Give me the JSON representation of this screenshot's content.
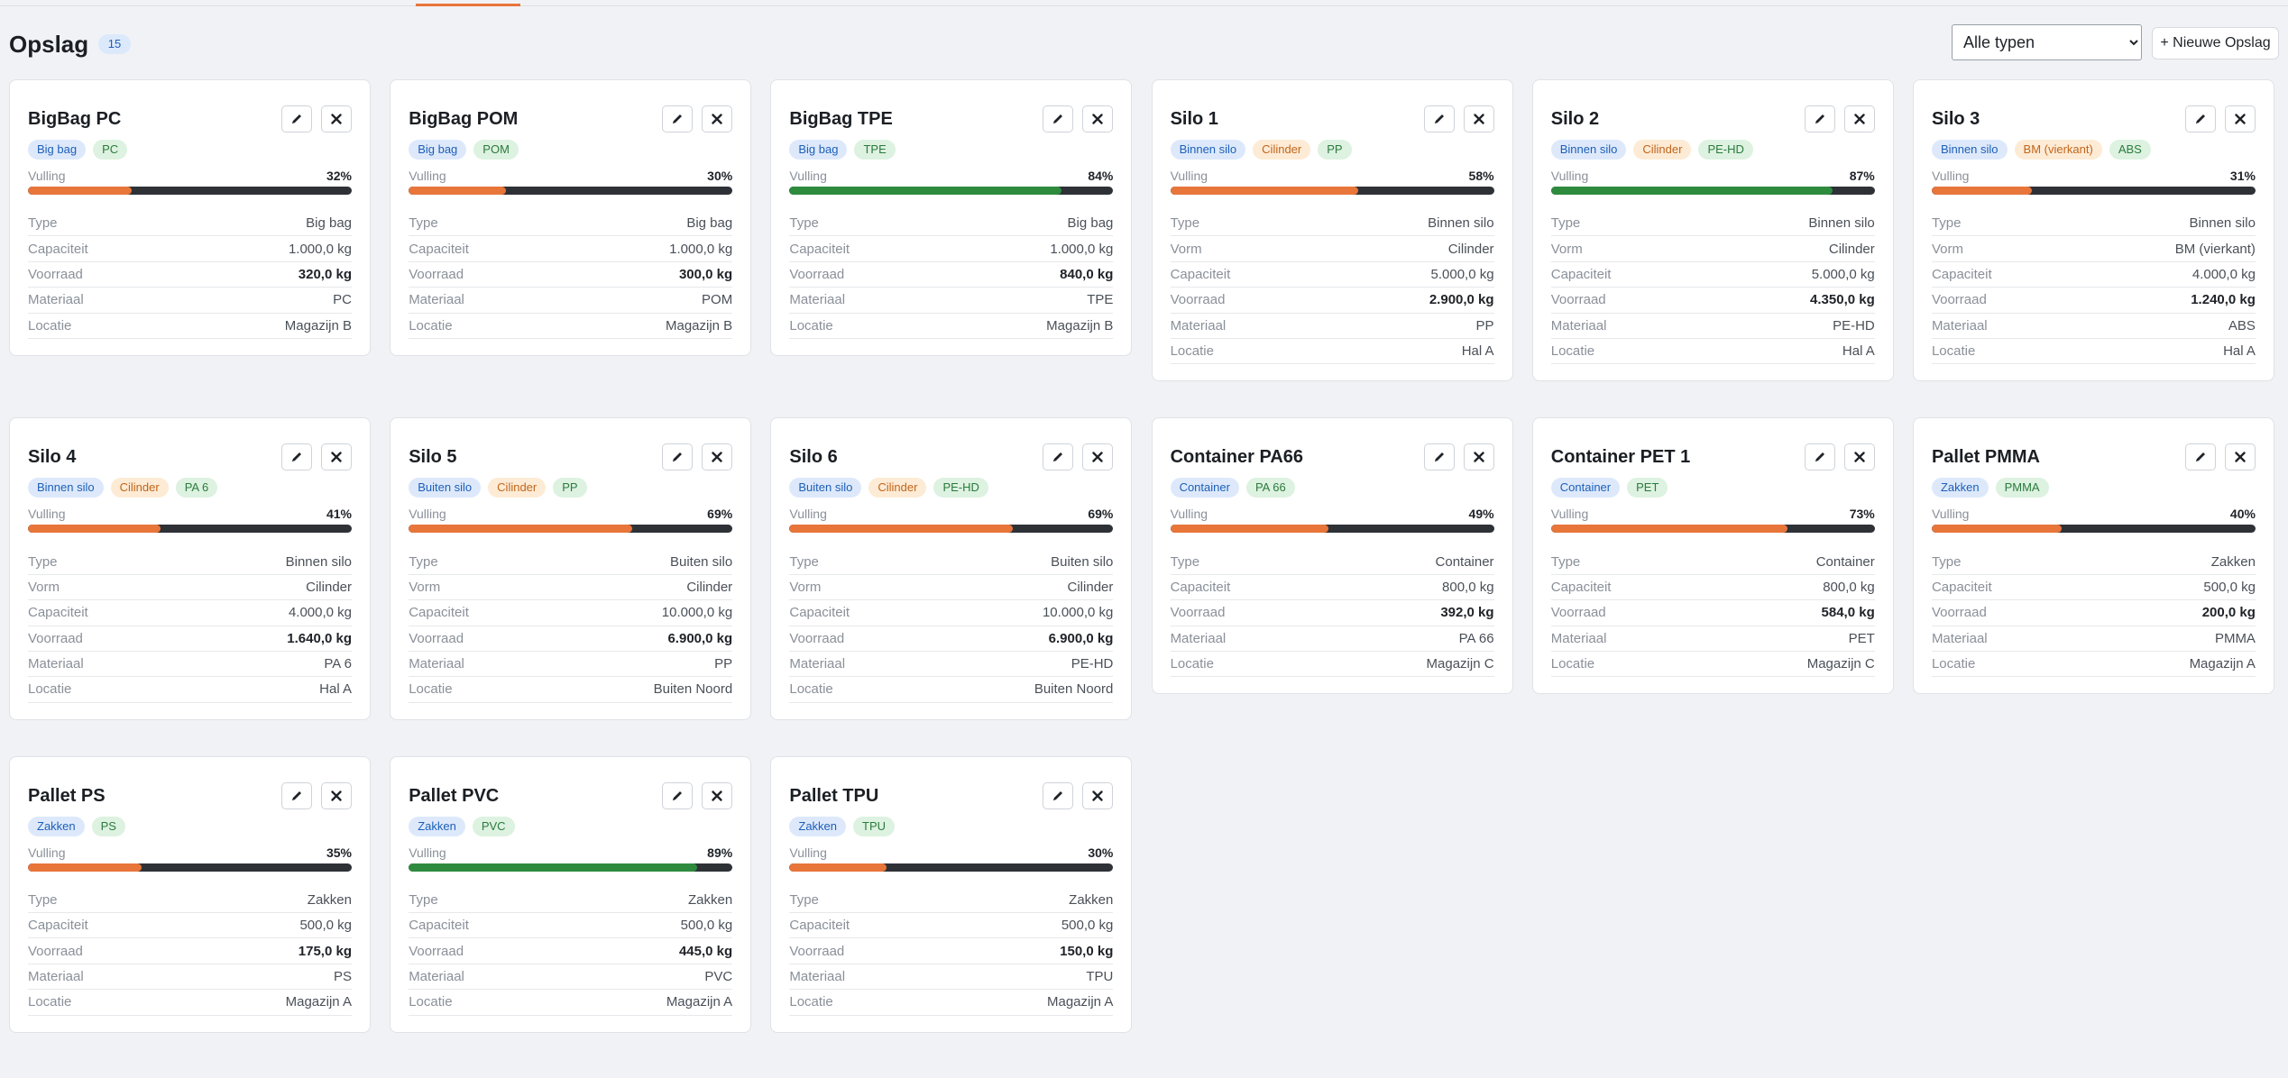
{
  "page": {
    "title": "Opslag",
    "count": "15",
    "filter": {
      "selected": "Alle typen"
    },
    "new_button_label": "+ Nieuwe Opslag",
    "fill_label": "Vulling"
  },
  "colors": {
    "accent": "#e8753a",
    "fill_high": "#2e8b3e",
    "bar_track": "#2e3237"
  },
  "cards": [
    {
      "title": "BigBag PC",
      "tags": [
        {
          "text": "Big bag",
          "kind": "type"
        },
        {
          "text": "PC",
          "kind": "material"
        }
      ],
      "fill_pct": 32,
      "fill_text": "32%",
      "rows": [
        {
          "label": "Type",
          "value": "Big bag"
        },
        {
          "label": "Capaciteit",
          "value": "1.000,0 kg"
        },
        {
          "label": "Voorraad",
          "value": "320,0 kg",
          "strong": true
        },
        {
          "label": "Materiaal",
          "value": "PC"
        },
        {
          "label": "Locatie",
          "value": "Magazijn B"
        }
      ]
    },
    {
      "title": "BigBag POM",
      "tags": [
        {
          "text": "Big bag",
          "kind": "type"
        },
        {
          "text": "POM",
          "kind": "material"
        }
      ],
      "fill_pct": 30,
      "fill_text": "30%",
      "rows": [
        {
          "label": "Type",
          "value": "Big bag"
        },
        {
          "label": "Capaciteit",
          "value": "1.000,0 kg"
        },
        {
          "label": "Voorraad",
          "value": "300,0 kg",
          "strong": true
        },
        {
          "label": "Materiaal",
          "value": "POM"
        },
        {
          "label": "Locatie",
          "value": "Magazijn B"
        }
      ]
    },
    {
      "title": "BigBag TPE",
      "tags": [
        {
          "text": "Big bag",
          "kind": "type"
        },
        {
          "text": "TPE",
          "kind": "material"
        }
      ],
      "fill_pct": 84,
      "fill_text": "84%",
      "rows": [
        {
          "label": "Type",
          "value": "Big bag"
        },
        {
          "label": "Capaciteit",
          "value": "1.000,0 kg"
        },
        {
          "label": "Voorraad",
          "value": "840,0 kg",
          "strong": true
        },
        {
          "label": "Materiaal",
          "value": "TPE"
        },
        {
          "label": "Locatie",
          "value": "Magazijn B"
        }
      ]
    },
    {
      "title": "Silo 1",
      "tags": [
        {
          "text": "Binnen silo",
          "kind": "type"
        },
        {
          "text": "Cilinder",
          "kind": "shape"
        },
        {
          "text": "PP",
          "kind": "material"
        }
      ],
      "fill_pct": 58,
      "fill_text": "58%",
      "rows": [
        {
          "label": "Type",
          "value": "Binnen silo"
        },
        {
          "label": "Vorm",
          "value": "Cilinder"
        },
        {
          "label": "Capaciteit",
          "value": "5.000,0 kg"
        },
        {
          "label": "Voorraad",
          "value": "2.900,0 kg",
          "strong": true
        },
        {
          "label": "Materiaal",
          "value": "PP"
        },
        {
          "label": "Locatie",
          "value": "Hal A"
        }
      ]
    },
    {
      "title": "Silo 2",
      "tags": [
        {
          "text": "Binnen silo",
          "kind": "type"
        },
        {
          "text": "Cilinder",
          "kind": "shape"
        },
        {
          "text": "PE-HD",
          "kind": "material"
        }
      ],
      "fill_pct": 87,
      "fill_text": "87%",
      "rows": [
        {
          "label": "Type",
          "value": "Binnen silo"
        },
        {
          "label": "Vorm",
          "value": "Cilinder"
        },
        {
          "label": "Capaciteit",
          "value": "5.000,0 kg"
        },
        {
          "label": "Voorraad",
          "value": "4.350,0 kg",
          "strong": true
        },
        {
          "label": "Materiaal",
          "value": "PE-HD"
        },
        {
          "label": "Locatie",
          "value": "Hal A"
        }
      ]
    },
    {
      "title": "Silo 3",
      "tags": [
        {
          "text": "Binnen silo",
          "kind": "type"
        },
        {
          "text": "BM (vierkant)",
          "kind": "shape"
        },
        {
          "text": "ABS",
          "kind": "material"
        }
      ],
      "fill_pct": 31,
      "fill_text": "31%",
      "rows": [
        {
          "label": "Type",
          "value": "Binnen silo"
        },
        {
          "label": "Vorm",
          "value": "BM (vierkant)"
        },
        {
          "label": "Capaciteit",
          "value": "4.000,0 kg"
        },
        {
          "label": "Voorraad",
          "value": "1.240,0 kg",
          "strong": true
        },
        {
          "label": "Materiaal",
          "value": "ABS"
        },
        {
          "label": "Locatie",
          "value": "Hal A"
        }
      ]
    },
    {
      "title": "Silo 4",
      "tags": [
        {
          "text": "Binnen silo",
          "kind": "type"
        },
        {
          "text": "Cilinder",
          "kind": "shape"
        },
        {
          "text": "PA 6",
          "kind": "material"
        }
      ],
      "fill_pct": 41,
      "fill_text": "41%",
      "rows": [
        {
          "label": "Type",
          "value": "Binnen silo"
        },
        {
          "label": "Vorm",
          "value": "Cilinder"
        },
        {
          "label": "Capaciteit",
          "value": "4.000,0 kg"
        },
        {
          "label": "Voorraad",
          "value": "1.640,0 kg",
          "strong": true
        },
        {
          "label": "Materiaal",
          "value": "PA 6"
        },
        {
          "label": "Locatie",
          "value": "Hal A"
        }
      ]
    },
    {
      "title": "Silo 5",
      "tags": [
        {
          "text": "Buiten silo",
          "kind": "type"
        },
        {
          "text": "Cilinder",
          "kind": "shape"
        },
        {
          "text": "PP",
          "kind": "material"
        }
      ],
      "fill_pct": 69,
      "fill_text": "69%",
      "rows": [
        {
          "label": "Type",
          "value": "Buiten silo"
        },
        {
          "label": "Vorm",
          "value": "Cilinder"
        },
        {
          "label": "Capaciteit",
          "value": "10.000,0 kg"
        },
        {
          "label": "Voorraad",
          "value": "6.900,0 kg",
          "strong": true
        },
        {
          "label": "Materiaal",
          "value": "PP"
        },
        {
          "label": "Locatie",
          "value": "Buiten Noord"
        }
      ]
    },
    {
      "title": "Silo 6",
      "tags": [
        {
          "text": "Buiten silo",
          "kind": "type"
        },
        {
          "text": "Cilinder",
          "kind": "shape"
        },
        {
          "text": "PE-HD",
          "kind": "material"
        }
      ],
      "fill_pct": 69,
      "fill_text": "69%",
      "rows": [
        {
          "label": "Type",
          "value": "Buiten silo"
        },
        {
          "label": "Vorm",
          "value": "Cilinder"
        },
        {
          "label": "Capaciteit",
          "value": "10.000,0 kg"
        },
        {
          "label": "Voorraad",
          "value": "6.900,0 kg",
          "strong": true
        },
        {
          "label": "Materiaal",
          "value": "PE-HD"
        },
        {
          "label": "Locatie",
          "value": "Buiten Noord"
        }
      ]
    },
    {
      "title": "Container PA66",
      "tags": [
        {
          "text": "Container",
          "kind": "type"
        },
        {
          "text": "PA 66",
          "kind": "material"
        }
      ],
      "fill_pct": 49,
      "fill_text": "49%",
      "rows": [
        {
          "label": "Type",
          "value": "Container"
        },
        {
          "label": "Capaciteit",
          "value": "800,0 kg"
        },
        {
          "label": "Voorraad",
          "value": "392,0 kg",
          "strong": true
        },
        {
          "label": "Materiaal",
          "value": "PA 66"
        },
        {
          "label": "Locatie",
          "value": "Magazijn C"
        }
      ]
    },
    {
      "title": "Container PET 1",
      "tags": [
        {
          "text": "Container",
          "kind": "type"
        },
        {
          "text": "PET",
          "kind": "material"
        }
      ],
      "fill_pct": 73,
      "fill_text": "73%",
      "rows": [
        {
          "label": "Type",
          "value": "Container"
        },
        {
          "label": "Capaciteit",
          "value": "800,0 kg"
        },
        {
          "label": "Voorraad",
          "value": "584,0 kg",
          "strong": true
        },
        {
          "label": "Materiaal",
          "value": "PET"
        },
        {
          "label": "Locatie",
          "value": "Magazijn C"
        }
      ]
    },
    {
      "title": "Pallet PMMA",
      "tags": [
        {
          "text": "Zakken",
          "kind": "type"
        },
        {
          "text": "PMMA",
          "kind": "material"
        }
      ],
      "fill_pct": 40,
      "fill_text": "40%",
      "rows": [
        {
          "label": "Type",
          "value": "Zakken"
        },
        {
          "label": "Capaciteit",
          "value": "500,0 kg"
        },
        {
          "label": "Voorraad",
          "value": "200,0 kg",
          "strong": true
        },
        {
          "label": "Materiaal",
          "value": "PMMA"
        },
        {
          "label": "Locatie",
          "value": "Magazijn A"
        }
      ]
    },
    {
      "title": "Pallet PS",
      "tags": [
        {
          "text": "Zakken",
          "kind": "type"
        },
        {
          "text": "PS",
          "kind": "material"
        }
      ],
      "fill_pct": 35,
      "fill_text": "35%",
      "rows": [
        {
          "label": "Type",
          "value": "Zakken"
        },
        {
          "label": "Capaciteit",
          "value": "500,0 kg"
        },
        {
          "label": "Voorraad",
          "value": "175,0 kg",
          "strong": true
        },
        {
          "label": "Materiaal",
          "value": "PS"
        },
        {
          "label": "Locatie",
          "value": "Magazijn A"
        }
      ]
    },
    {
      "title": "Pallet PVC",
      "tags": [
        {
          "text": "Zakken",
          "kind": "type"
        },
        {
          "text": "PVC",
          "kind": "material"
        }
      ],
      "fill_pct": 89,
      "fill_text": "89%",
      "rows": [
        {
          "label": "Type",
          "value": "Zakken"
        },
        {
          "label": "Capaciteit",
          "value": "500,0 kg"
        },
        {
          "label": "Voorraad",
          "value": "445,0 kg",
          "strong": true
        },
        {
          "label": "Materiaal",
          "value": "PVC"
        },
        {
          "label": "Locatie",
          "value": "Magazijn A"
        }
      ]
    },
    {
      "title": "Pallet TPU",
      "tags": [
        {
          "text": "Zakken",
          "kind": "type"
        },
        {
          "text": "TPU",
          "kind": "material"
        }
      ],
      "fill_pct": 30,
      "fill_text": "30%",
      "rows": [
        {
          "label": "Type",
          "value": "Zakken"
        },
        {
          "label": "Capaciteit",
          "value": "500,0 kg"
        },
        {
          "label": "Voorraad",
          "value": "150,0 kg",
          "strong": true
        },
        {
          "label": "Materiaal",
          "value": "TPU"
        },
        {
          "label": "Locatie",
          "value": "Magazijn A"
        }
      ]
    }
  ]
}
